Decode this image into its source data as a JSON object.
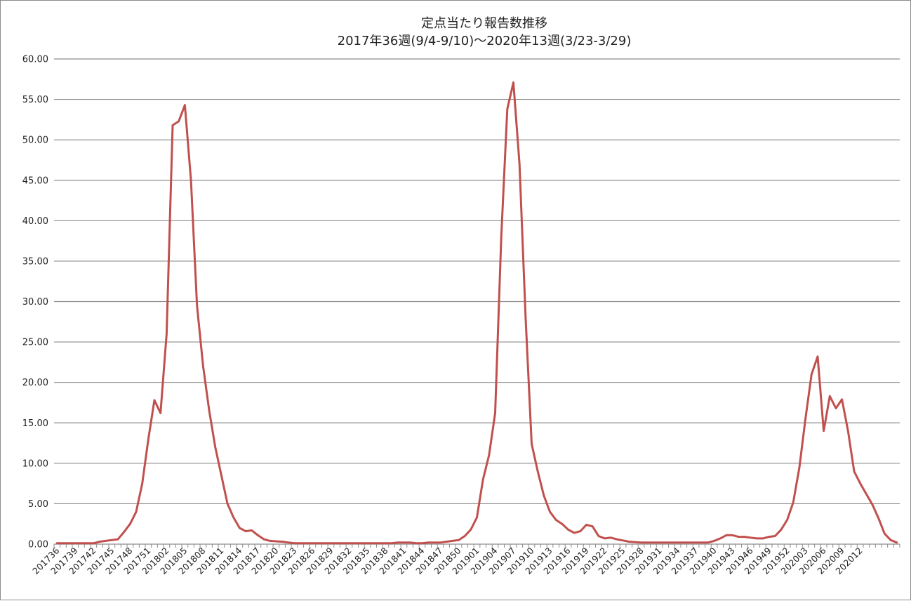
{
  "chart_data": {
    "type": "line",
    "title": "定点当たり報告数推移",
    "subtitle": "2017年36週(9/4-9/10)～2020年13週(3/23-3/29)",
    "xlabel": "",
    "ylabel": "",
    "ylim": [
      0,
      60
    ],
    "yticks": [
      "0.00",
      "5.00",
      "10.00",
      "15.00",
      "20.00",
      "25.00",
      "30.00",
      "35.00",
      "40.00",
      "45.00",
      "50.00",
      "55.00",
      "60.00"
    ],
    "xtick_labels": [
      "201736",
      "201739",
      "201742",
      "201745",
      "201748",
      "201751",
      "201802",
      "201805",
      "201808",
      "201811",
      "201814",
      "201817",
      "201820",
      "201823",
      "201826",
      "201829",
      "201832",
      "201835",
      "201838",
      "201841",
      "201844",
      "201847",
      "201850",
      "201901",
      "201904",
      "201907",
      "201910",
      "201913",
      "201916",
      "201919",
      "201922",
      "201925",
      "201928",
      "201931",
      "201934",
      "201937",
      "201940",
      "201943",
      "201946",
      "201949",
      "201952",
      "202003",
      "202006",
      "202009",
      "202012"
    ],
    "grid": "horizontal",
    "legend": "none",
    "line_color": "#c0504d",
    "series": [
      {
        "values": [
          0.1,
          0.1,
          0.1,
          0.1,
          0.1,
          0.1,
          0.1,
          0.3,
          0.4,
          0.5,
          0.6,
          1.5,
          2.5,
          4.0,
          7.5,
          13.0,
          17.8,
          16.2,
          26.0,
          51.8,
          52.3,
          54.3,
          45.0,
          29.5,
          22.0,
          16.5,
          12.0,
          8.5,
          5.0,
          3.3,
          2.0,
          1.6,
          1.7,
          1.1,
          0.6,
          0.4,
          0.35,
          0.3,
          0.2,
          0.1,
          0.1,
          0.1,
          0.1,
          0.1,
          0.1,
          0.1,
          0.1,
          0.1,
          0.1,
          0.1,
          0.1,
          0.1,
          0.1,
          0.1,
          0.1,
          0.1,
          0.2,
          0.2,
          0.2,
          0.1,
          0.1,
          0.2,
          0.2,
          0.2,
          0.3,
          0.4,
          0.5,
          1.0,
          1.8,
          3.3,
          8.0,
          11.0,
          16.2,
          38.0,
          53.8,
          57.1,
          47.0,
          28.0,
          12.4,
          9.0,
          6.0,
          4.0,
          3.0,
          2.5,
          1.8,
          1.4,
          1.6,
          2.4,
          2.2,
          1.0,
          0.7,
          0.8,
          0.6,
          0.45,
          0.3,
          0.25,
          0.2,
          0.2,
          0.2,
          0.2,
          0.2,
          0.2,
          0.2,
          0.2,
          0.2,
          0.2,
          0.2,
          0.2,
          0.4,
          0.7,
          1.1,
          1.1,
          0.9,
          0.9,
          0.8,
          0.7,
          0.7,
          0.9,
          1.0,
          1.8,
          3.0,
          5.2,
          9.5,
          15.5,
          21.0,
          23.2,
          14.0,
          18.3,
          16.8,
          17.9,
          14.0,
          9.0,
          7.5,
          6.2,
          4.9,
          3.2,
          1.3,
          0.5,
          0.2
        ]
      }
    ]
  }
}
